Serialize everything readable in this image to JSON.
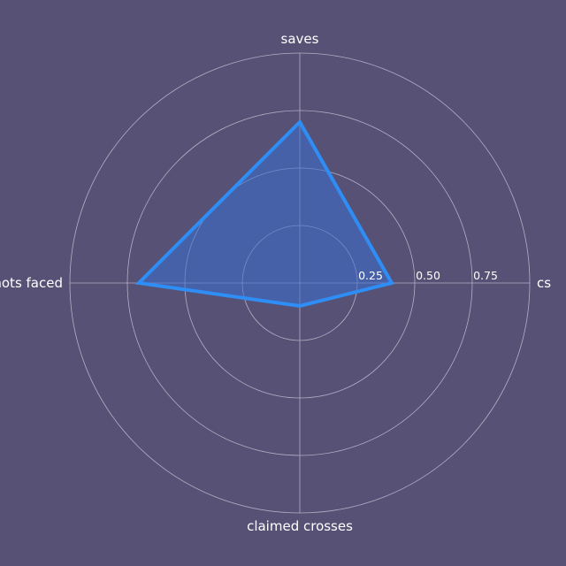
{
  "chart_data": {
    "type": "radar",
    "axes": [
      "cs",
      "saves",
      "shots faced",
      "claimed crosses"
    ],
    "series": [
      {
        "values": [
          0.4,
          0.7,
          0.7,
          0.1
        ]
      }
    ],
    "rlim": [
      0,
      1
    ],
    "ticks": [
      0.25,
      0.5,
      0.75,
      1.0
    ],
    "tick_labels": [
      "0.25",
      "0.50",
      "0.75",
      ""
    ],
    "grid": true,
    "colors": {
      "background": "#575175",
      "grid": "#b3b0c4",
      "series_line": "#2e8ef5",
      "series_fill": "#3a6fd1",
      "text": "#ffffff"
    }
  }
}
